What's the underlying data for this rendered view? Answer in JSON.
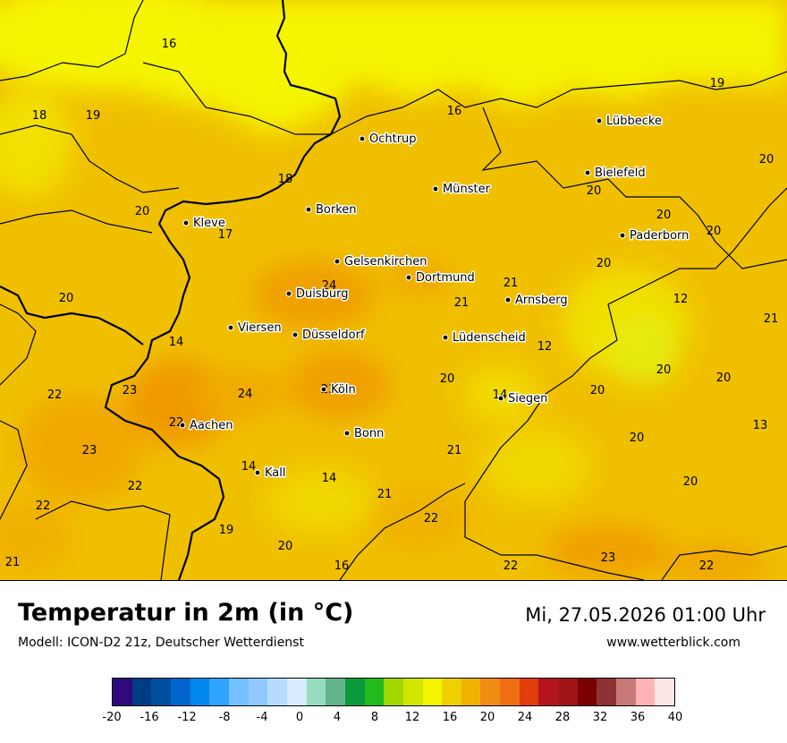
{
  "title": "Temperatur in 2m (in °C)",
  "subtitle": "Modell: ICON-D2 21z, Deutscher Wetterdienst",
  "datetime": "Mi, 27.05.2026 01:00 Uhr",
  "website": "www.wetterblick.com",
  "legend": {
    "colors": [
      "#2e0a7a",
      "#003c84",
      "#004f9e",
      "#0066cc",
      "#0087f0",
      "#2ea3ff",
      "#73bfff",
      "#8fc9ff",
      "#b5dcff",
      "#d9ecff",
      "#96dcbe",
      "#64b48c",
      "#0a9a3c",
      "#22bb1e",
      "#a0d800",
      "#d2e600",
      "#f5f500",
      "#f0d000",
      "#f0b400",
      "#f08c14",
      "#ef6e14",
      "#e13c0a",
      "#b4141e",
      "#a01418",
      "#7a0000",
      "#8c3232",
      "#c87878",
      "#ffb4b4",
      "#ffe6e6"
    ],
    "ticks": [
      "-20",
      "-16",
      "-12",
      "-8",
      "-4",
      "0",
      "4",
      "8",
      "12",
      "16",
      "20",
      "24",
      "28",
      "32",
      "36",
      "40"
    ]
  },
  "cities": [
    {
      "name": "Lübbecke"
    },
    {
      "name": "Ochtrup"
    },
    {
      "name": "Bielefeld"
    },
    {
      "name": "Münster"
    },
    {
      "name": "Borken"
    },
    {
      "name": "Kleve"
    },
    {
      "name": "Paderborn"
    },
    {
      "name": "Gelsenkirchen"
    },
    {
      "name": "Dortmund"
    },
    {
      "name": "Duisburg"
    },
    {
      "name": "Arnsberg"
    },
    {
      "name": "Viersen"
    },
    {
      "name": "Düsseldorf"
    },
    {
      "name": "Lüdenscheid"
    },
    {
      "name": "Köln"
    },
    {
      "name": "Siegen"
    },
    {
      "name": "Aachen"
    },
    {
      "name": "Bonn"
    },
    {
      "name": "Kall"
    }
  ],
  "values": [
    "16",
    "19",
    "18",
    "19",
    "16",
    "20",
    "18",
    "20",
    "17",
    "20",
    "20",
    "20",
    "24",
    "21",
    "20",
    "21",
    "21",
    "12",
    "20",
    "14",
    "12",
    "20",
    "24",
    "23",
    "23",
    "20",
    "20",
    "22",
    "14",
    "20",
    "22",
    "13",
    "23",
    "21",
    "20",
    "14",
    "14",
    "22",
    "21",
    "20",
    "22",
    "22",
    "19",
    "20",
    "23",
    "16",
    "22",
    "22",
    "21"
  ]
}
